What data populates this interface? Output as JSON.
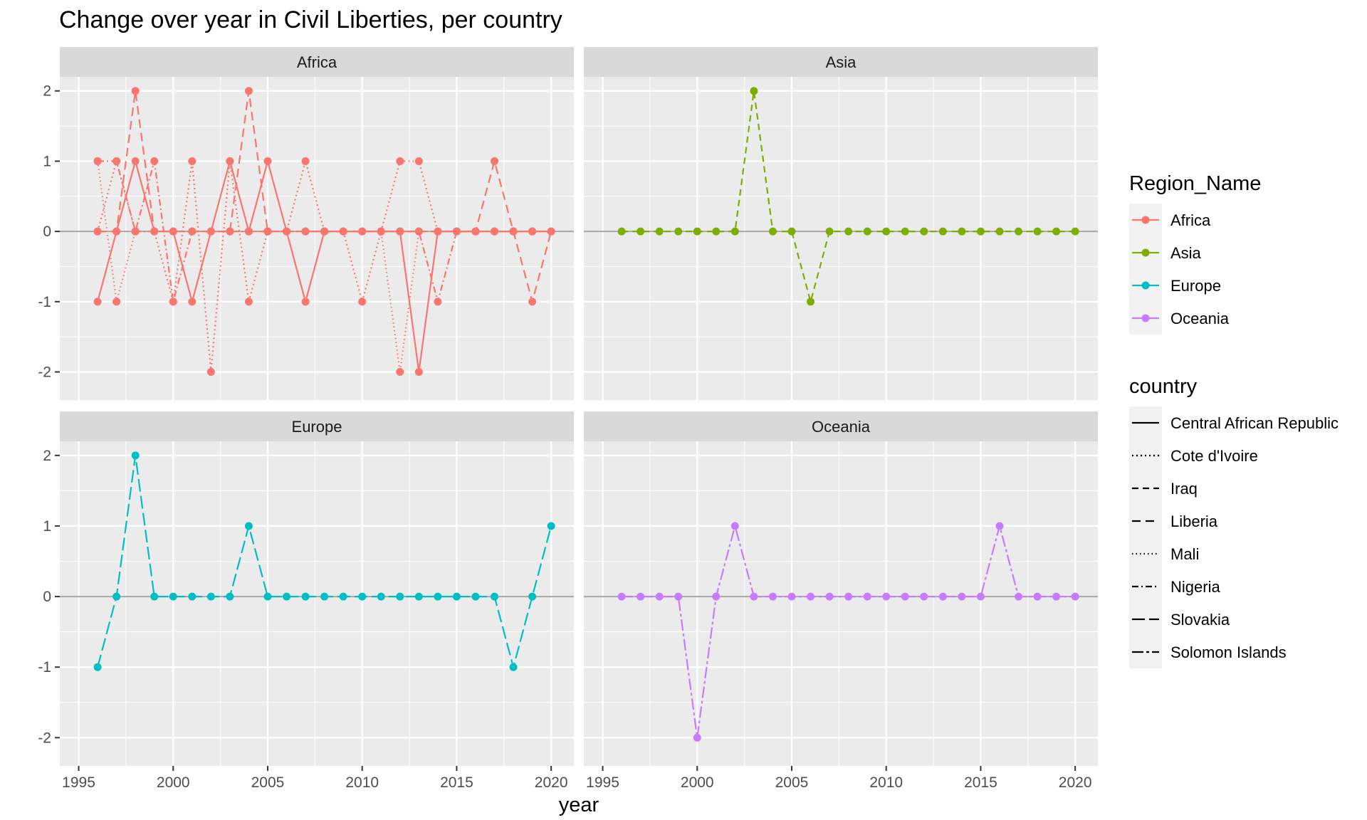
{
  "chart_data": {
    "type": "line",
    "title": "Change over year in Civil Liberties, per country",
    "xlabel": "year",
    "ylabel": "",
    "xlim": [
      1994.0,
      2021.2
    ],
    "ylim": [
      -2.4,
      2.2
    ],
    "x_ticks": [
      1995,
      2000,
      2005,
      2010,
      2015,
      2020
    ],
    "x_tick_labels": [
      "1995",
      "2000",
      "2005",
      "2010",
      "2015",
      "2020"
    ],
    "y_ticks": [
      -2,
      -1,
      0,
      1,
      2
    ],
    "y_tick_labels": [
      "-2",
      "-1",
      "0",
      "1",
      "2"
    ],
    "grid": true,
    "points_on_lines": true,
    "facets": [
      "Africa",
      "Asia",
      "Europe",
      "Oceania"
    ],
    "region_colors": {
      "Africa": "#F8766D",
      "Asia": "#7CAE00",
      "Europe": "#00BFC4",
      "Oceania": "#C77CFF"
    },
    "legend": {
      "placement": "right",
      "color_title": "Region_Name",
      "color_items": [
        "Africa",
        "Asia",
        "Europe",
        "Oceania"
      ],
      "linetype_title": "country",
      "linetype_items": [
        {
          "name": "Central African Republic",
          "dash": ""
        },
        {
          "name": "Cote d'Ivoire",
          "dash": "2 4"
        },
        {
          "name": "Iraq",
          "dash": "9 6"
        },
        {
          "name": "Liberia",
          "dash": "12 7"
        },
        {
          "name": "Mali",
          "dash": "1.5 4"
        },
        {
          "name": "Nigeria",
          "dash": "9 4 2 4"
        },
        {
          "name": "Slovakia",
          "dash": "18 6"
        },
        {
          "name": "Solomon Islands",
          "dash": "16 4 4 4"
        }
      ]
    },
    "series": [
      {
        "name": "Central African Republic",
        "region": "Africa",
        "linetype": "Central African Republic",
        "x": [
          1996,
          1997,
          1998,
          1999,
          2000,
          2001,
          2002,
          2003,
          2004,
          2005,
          2006,
          2007,
          2008,
          2009,
          2010,
          2011,
          2012,
          2013,
          2014,
          2015,
          2016,
          2017,
          2018,
          2019,
          2020
        ],
        "y": [
          -1,
          0,
          1,
          0,
          0,
          -1,
          0,
          1,
          0,
          1,
          0,
          -1,
          0,
          0,
          0,
          0,
          0,
          -2,
          0,
          0,
          0,
          0,
          0,
          0,
          0
        ]
      },
      {
        "name": "Cote d'Ivoire",
        "region": "Africa",
        "linetype": "Cote d'Ivoire",
        "x": [
          1996,
          1997,
          1998,
          1999,
          2000,
          2001,
          2002,
          2003,
          2004,
          2005,
          2006,
          2007,
          2008,
          2009,
          2010,
          2011,
          2012,
          2013,
          2014,
          2015,
          2016,
          2017,
          2018,
          2019,
          2020
        ],
        "y": [
          0,
          1,
          0,
          0,
          -1,
          1,
          -2,
          1,
          -1,
          0,
          0,
          1,
          0,
          0,
          -1,
          0,
          1,
          1,
          0,
          0,
          0,
          0,
          0,
          0,
          0
        ]
      },
      {
        "name": "Liberia",
        "region": "Africa",
        "linetype": "Liberia",
        "x": [
          1996,
          1997,
          1998,
          1999,
          2000,
          2001,
          2002,
          2003,
          2004,
          2005,
          2006,
          2007,
          2008,
          2009,
          2010,
          2011,
          2012,
          2013,
          2014,
          2015,
          2016,
          2017,
          2018,
          2019,
          2020
        ],
        "y": [
          0,
          0,
          2,
          0,
          0,
          0,
          0,
          0,
          2,
          0,
          0,
          0,
          0,
          0,
          0,
          0,
          0,
          0,
          0,
          0,
          0,
          1,
          0,
          -1,
          0
        ]
      },
      {
        "name": "Mali",
        "region": "Africa",
        "linetype": "Mali",
        "x": [
          1996,
          1997,
          1998,
          1999,
          2000,
          2001,
          2002,
          2003,
          2004,
          2005,
          2006,
          2007,
          2008,
          2009,
          2010,
          2011,
          2012,
          2013,
          2014,
          2015,
          2016,
          2017,
          2018,
          2019,
          2020
        ],
        "y": [
          1,
          -1,
          0,
          0,
          0,
          0,
          0,
          0,
          0,
          0,
          0,
          0,
          0,
          0,
          0,
          0,
          -2,
          0,
          0,
          0,
          0,
          0,
          0,
          0,
          0
        ]
      },
      {
        "name": "Nigeria",
        "region": "Africa",
        "linetype": "Nigeria",
        "x": [
          1996,
          1997,
          1998,
          1999,
          2000,
          2001,
          2002,
          2003,
          2004,
          2005,
          2006,
          2007,
          2008,
          2009,
          2010,
          2011,
          2012,
          2013,
          2014,
          2015,
          2016,
          2017,
          2018,
          2019,
          2020
        ],
        "y": [
          1,
          1,
          0,
          1,
          -1,
          0,
          0,
          0,
          0,
          0,
          0,
          0,
          0,
          0,
          0,
          0,
          0,
          0,
          -1,
          0,
          0,
          0,
          0,
          0,
          0
        ]
      },
      {
        "name": "Iraq",
        "region": "Asia",
        "linetype": "Iraq",
        "x": [
          1996,
          1997,
          1998,
          1999,
          2000,
          2001,
          2002,
          2003,
          2004,
          2005,
          2006,
          2007,
          2008,
          2009,
          2010,
          2011,
          2012,
          2013,
          2014,
          2015,
          2016,
          2017,
          2018,
          2019,
          2020
        ],
        "y": [
          0,
          0,
          0,
          0,
          0,
          0,
          0,
          2,
          0,
          0,
          -1,
          0,
          0,
          0,
          0,
          0,
          0,
          0,
          0,
          0,
          0,
          0,
          0,
          0,
          0
        ]
      },
      {
        "name": "Slovakia",
        "region": "Europe",
        "linetype": "Slovakia",
        "x": [
          1996,
          1997,
          1998,
          1999,
          2000,
          2001,
          2002,
          2003,
          2004,
          2005,
          2006,
          2007,
          2008,
          2009,
          2010,
          2011,
          2012,
          2013,
          2014,
          2015,
          2016,
          2017,
          2018,
          2019,
          2020
        ],
        "y": [
          -1,
          0,
          2,
          0,
          0,
          0,
          0,
          0,
          1,
          0,
          0,
          0,
          0,
          0,
          0,
          0,
          0,
          0,
          0,
          0,
          0,
          0,
          -1,
          0,
          1
        ]
      },
      {
        "name": "Solomon Islands",
        "region": "Oceania",
        "linetype": "Solomon Islands",
        "x": [
          1996,
          1997,
          1998,
          1999,
          2000,
          2001,
          2002,
          2003,
          2004,
          2005,
          2006,
          2007,
          2008,
          2009,
          2010,
          2011,
          2012,
          2013,
          2014,
          2015,
          2016,
          2017,
          2018,
          2019,
          2020
        ],
        "y": [
          0,
          0,
          0,
          0,
          -2,
          0,
          1,
          0,
          0,
          0,
          0,
          0,
          0,
          0,
          0,
          0,
          0,
          0,
          0,
          0,
          1,
          0,
          0,
          0,
          0
        ]
      }
    ]
  }
}
